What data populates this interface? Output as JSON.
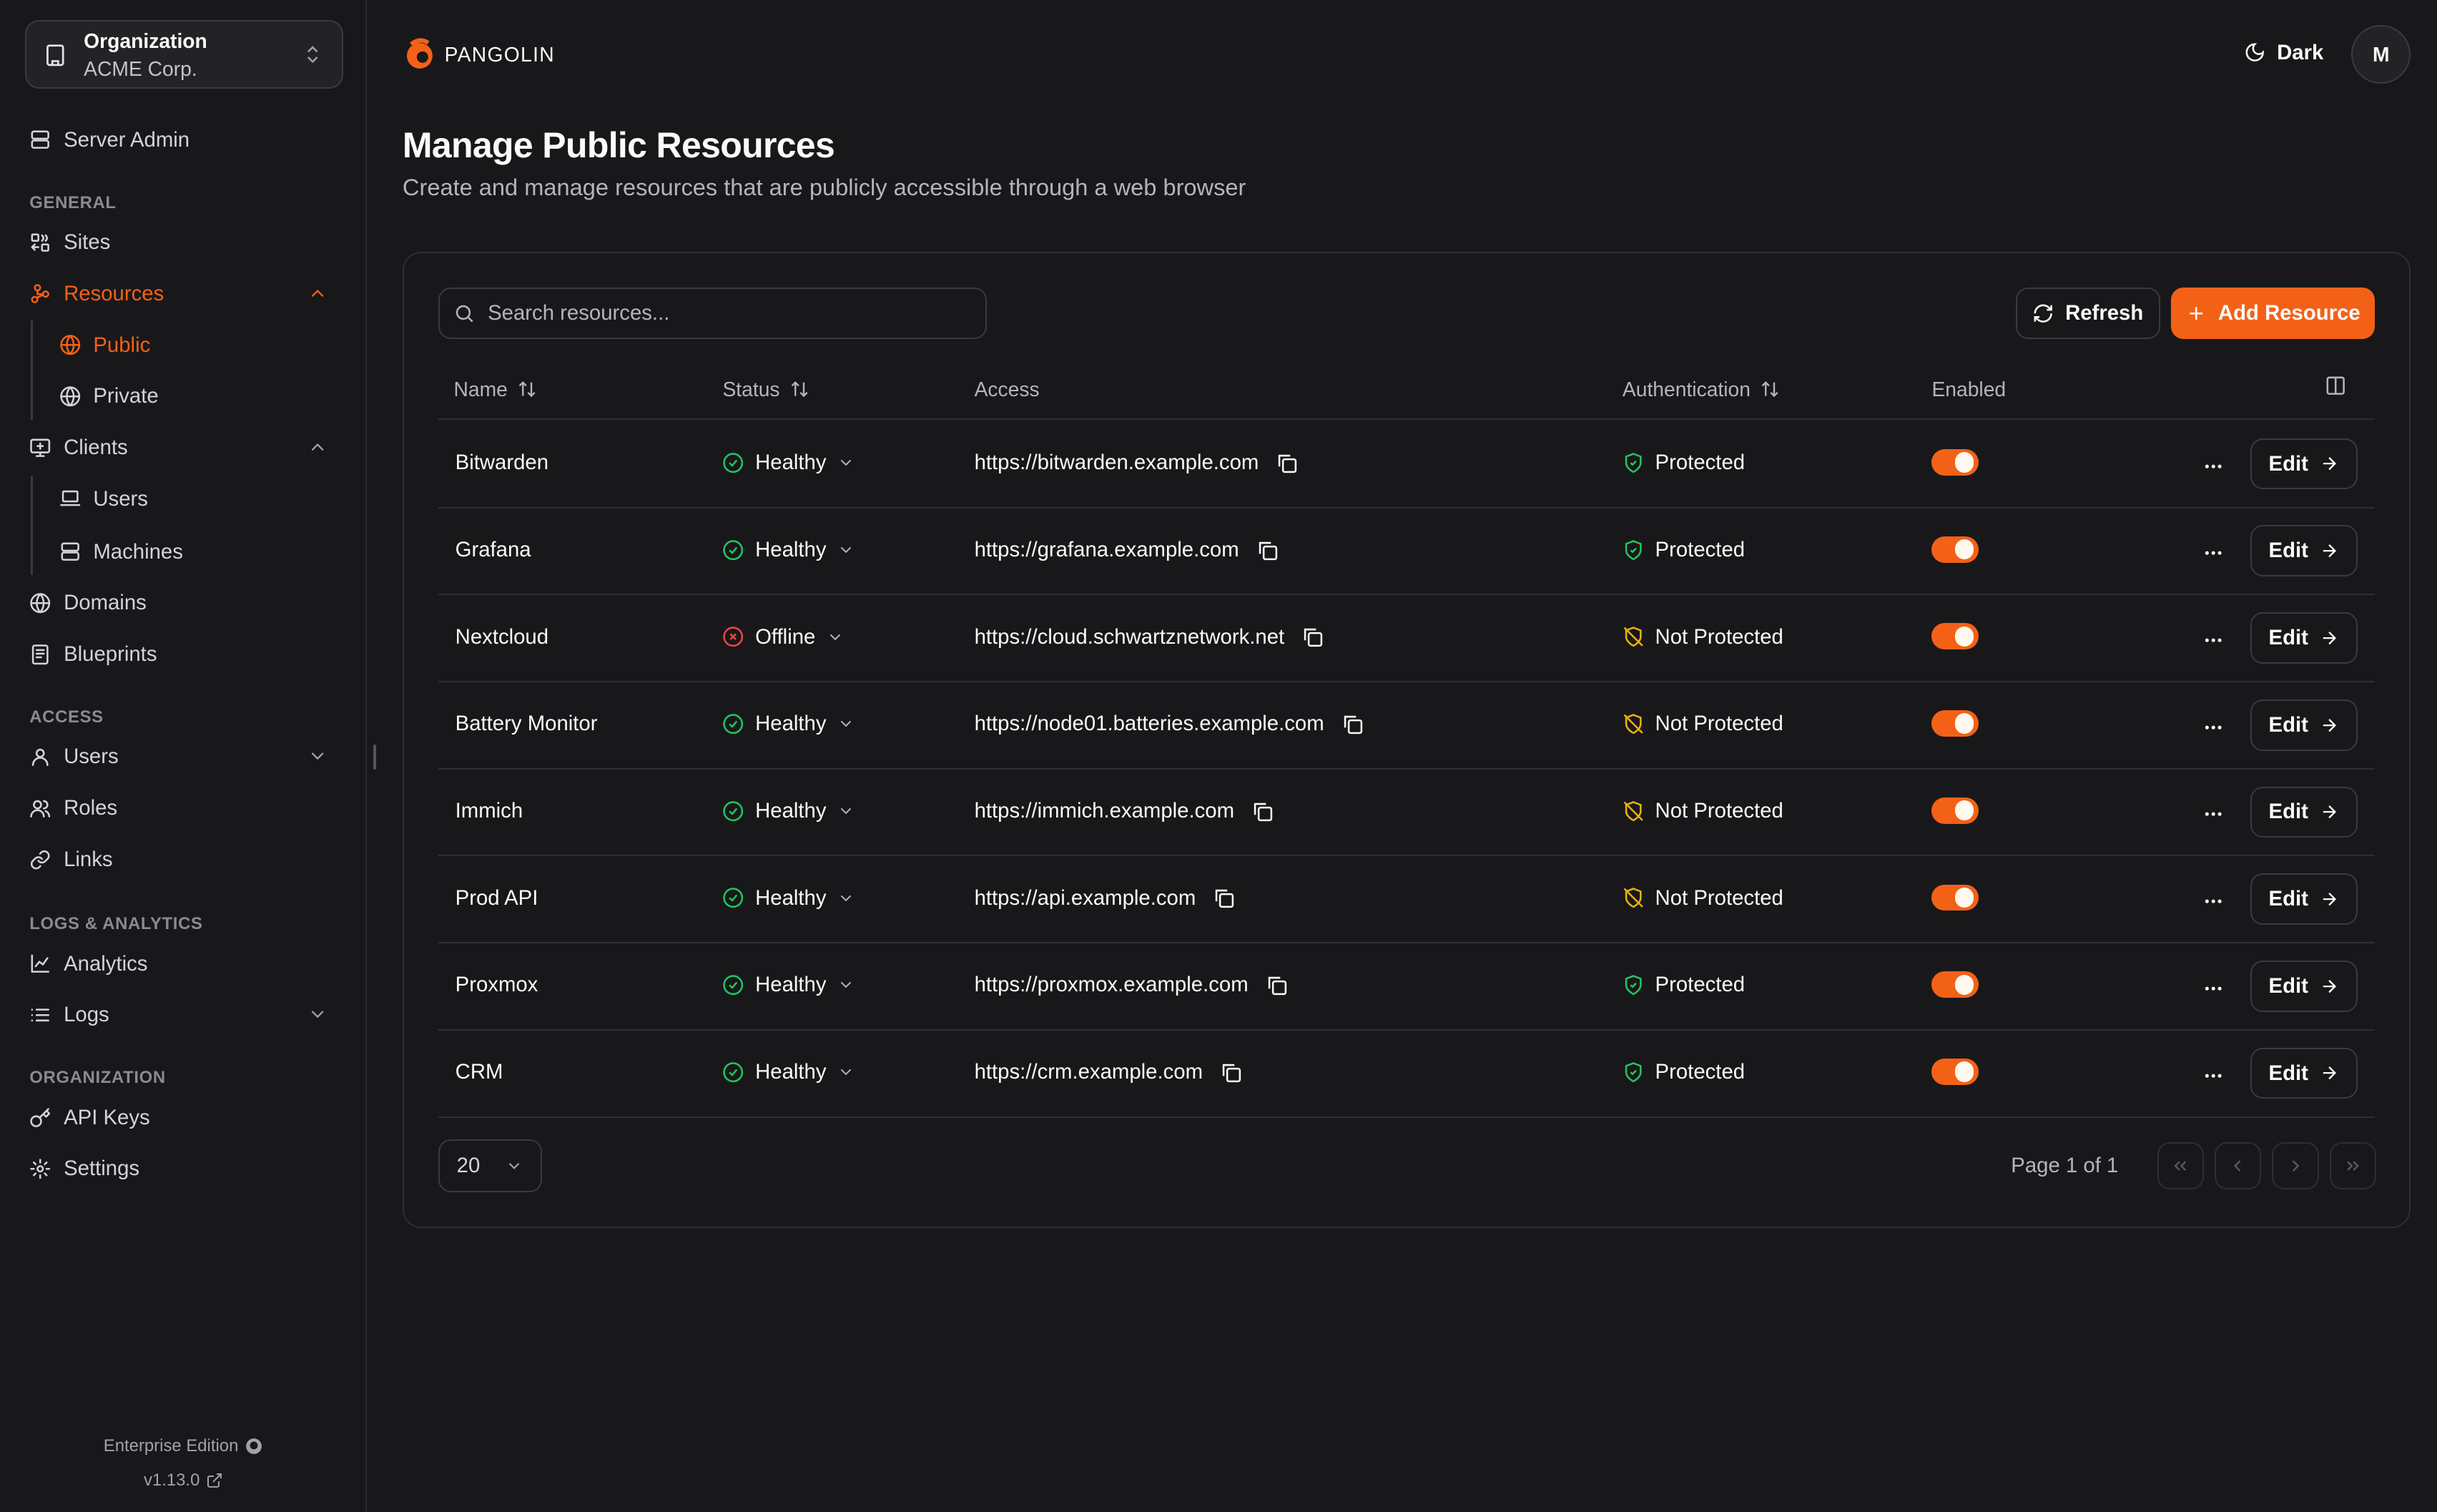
{
  "org": {
    "label": "Organization",
    "name": "ACME Corp."
  },
  "sidebar": {
    "server_admin": "Server Admin",
    "sections": [
      "GENERAL",
      "ACCESS",
      "LOGS & ANALYTICS",
      "ORGANIZATION"
    ],
    "items": {
      "sites": "Sites",
      "resources": "Resources",
      "public": "Public",
      "private": "Private",
      "clients": "Clients",
      "users_client": "Users",
      "machines": "Machines",
      "domains": "Domains",
      "blueprints": "Blueprints",
      "users": "Users",
      "roles": "Roles",
      "links": "Links",
      "analytics": "Analytics",
      "logs": "Logs",
      "api_keys": "API Keys",
      "settings": "Settings"
    },
    "footer": {
      "edition": "Enterprise Edition",
      "version": "v1.13.0"
    }
  },
  "header": {
    "brand": "PANGOLIN",
    "theme": "Dark",
    "avatar": "M"
  },
  "page": {
    "title": "Manage Public Resources",
    "subtitle": "Create and manage resources that are publicly accessible through a web browser"
  },
  "toolbar": {
    "search_placeholder": "Search resources...",
    "search_value": "",
    "refresh": "Refresh",
    "add": "Add Resource"
  },
  "table": {
    "columns": [
      "Name",
      "Status",
      "Access",
      "Authentication",
      "Enabled"
    ],
    "edit_label": "Edit",
    "rows": [
      {
        "name": "Bitwarden",
        "status": "Healthy",
        "access": "https://bitwarden.example.com",
        "auth": "Protected",
        "enabled": true
      },
      {
        "name": "Grafana",
        "status": "Healthy",
        "access": "https://grafana.example.com",
        "auth": "Protected",
        "enabled": true
      },
      {
        "name": "Nextcloud",
        "status": "Offline",
        "access": "https://cloud.schwartznetwork.net",
        "auth": "Not Protected",
        "enabled": true
      },
      {
        "name": "Battery Monitor",
        "status": "Healthy",
        "access": "https://node01.batteries.example.com",
        "auth": "Not Protected",
        "enabled": true
      },
      {
        "name": "Immich",
        "status": "Healthy",
        "access": "https://immich.example.com",
        "auth": "Not Protected",
        "enabled": true
      },
      {
        "name": "Prod API",
        "status": "Healthy",
        "access": "https://api.example.com",
        "auth": "Not Protected",
        "enabled": true
      },
      {
        "name": "Proxmox",
        "status": "Healthy",
        "access": "https://proxmox.example.com",
        "auth": "Protected",
        "enabled": true
      },
      {
        "name": "CRM",
        "status": "Healthy",
        "access": "https://crm.example.com",
        "auth": "Protected",
        "enabled": true
      }
    ]
  },
  "pagination": {
    "page_size": "20",
    "info": "Page 1 of 1"
  },
  "colors": {
    "accent": "#f36117",
    "healthy": "#22c55e",
    "offline": "#ef4444",
    "warning": "#eab308",
    "background": "#18181b"
  }
}
